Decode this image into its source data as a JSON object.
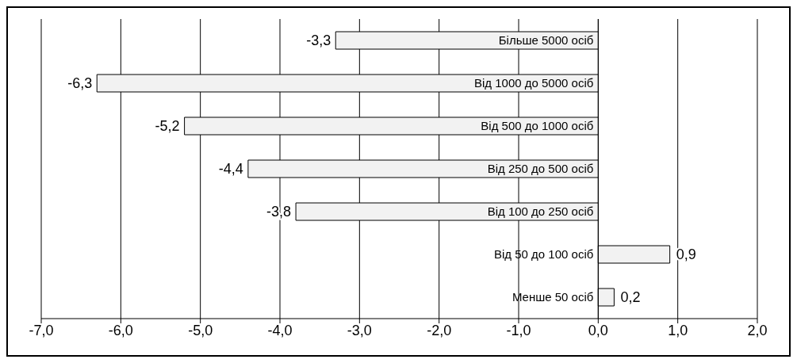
{
  "chart_data": {
    "type": "bar",
    "orientation": "horizontal",
    "categories": [
      "Більше 5000 осіб",
      "Від 1000 до 5000 осіб",
      "Від 500 до 1000 осіб",
      "Від 250 до 500 осіб",
      "Від 100 до 250 осіб",
      "Від 50 до 100 осіб",
      "Менше 50 осіб"
    ],
    "values": [
      -3.3,
      -6.3,
      -5.2,
      -4.4,
      -3.8,
      0.9,
      0.2
    ],
    "value_labels": [
      "-3,3",
      "-6,3",
      "-5,2",
      "-4,4",
      "-3,8",
      "0,9",
      "0,2"
    ],
    "color": "#f2f2f2",
    "xlim": [
      -7,
      2
    ],
    "xticks": [
      {
        "value": -7,
        "label": "-7,0"
      },
      {
        "value": -6,
        "label": "-6,0"
      },
      {
        "value": -5,
        "label": "-5,0"
      },
      {
        "value": -4,
        "label": "-4,0"
      },
      {
        "value": -3,
        "label": "-3,0"
      },
      {
        "value": -2,
        "label": "-2,0"
      },
      {
        "value": -1,
        "label": "-1,0"
      },
      {
        "value": 0,
        "label": "0,0"
      },
      {
        "value": 1,
        "label": "1,0"
      },
      {
        "value": 2,
        "label": "2,0"
      }
    ],
    "grid": "x",
    "legend": false
  }
}
